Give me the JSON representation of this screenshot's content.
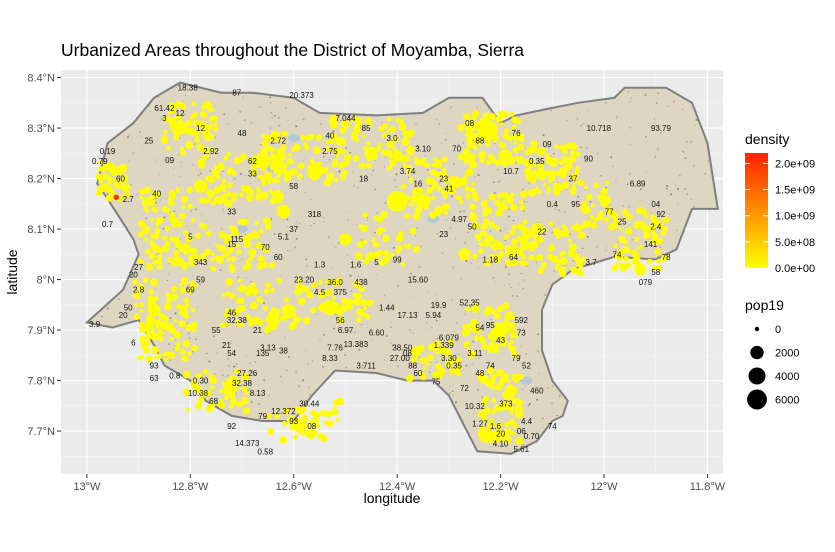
{
  "chart_data": {
    "type": "scatter",
    "title": "Urbanized Areas throughout the District of Moyamba, Sierra",
    "xlabel": "longitude",
    "ylabel": "latitude",
    "xlim": [
      -13.05,
      -11.77
    ],
    "ylim": [
      7.615,
      8.415
    ],
    "x_ticks": [
      {
        "value": -13.0,
        "label": "13°W"
      },
      {
        "value": -12.8,
        "label": "12.8°W"
      },
      {
        "value": -12.6,
        "label": "12.6°W"
      },
      {
        "value": -12.4,
        "label": "12.4°W"
      },
      {
        "value": -12.2,
        "label": "12.2°W"
      },
      {
        "value": -12.0,
        "label": "12°W"
      },
      {
        "value": -11.8,
        "label": "11.8°W"
      }
    ],
    "y_ticks": [
      {
        "value": 7.7,
        "label": "7.7°N"
      },
      {
        "value": 7.8,
        "label": "7.8°N"
      },
      {
        "value": 7.9,
        "label": "7.9°N"
      },
      {
        "value": 8.0,
        "label": "8°N"
      },
      {
        "value": 8.1,
        "label": "8.1°N"
      },
      {
        "value": 8.2,
        "label": "8.2°N"
      },
      {
        "value": 8.3,
        "label": "8.3°N"
      },
      {
        "value": 8.4,
        "label": "8.4°N"
      }
    ],
    "grid": true,
    "legend_position": "right",
    "colors": {
      "panel": "#ebebeb",
      "grid": "#ffffff",
      "land": "#ded6c0",
      "border": "#7f7f7f",
      "point": "#ffff00",
      "dense_point": "#ff2a00",
      "water": "#a9c6d9"
    },
    "legend_density": {
      "title": "density",
      "labels": [
        "2.0e+09",
        "1.5e+09",
        "1.0e+09",
        "5.0e+08",
        "0.0e+00"
      ],
      "values": [
        2000000000.0,
        1500000000.0,
        1000000000.0,
        500000000.0,
        0
      ],
      "color_low": "#ffff00",
      "color_high": "#ff2000"
    },
    "legend_pop": {
      "title": "pop19",
      "labels": [
        "0",
        "2000",
        "4000",
        "6000"
      ],
      "values": [
        0,
        2000,
        4000,
        6000
      ]
    },
    "district_outline": [
      [
        -13.0,
        7.915
      ],
      [
        -12.95,
        7.905
      ],
      [
        -12.9,
        7.92
      ],
      [
        -12.87,
        7.87
      ],
      [
        -12.85,
        7.83
      ],
      [
        -12.8,
        7.8
      ],
      [
        -12.77,
        7.76
      ],
      [
        -12.72,
        7.73
      ],
      [
        -12.66,
        7.72
      ],
      [
        -12.6,
        7.72
      ],
      [
        -12.565,
        7.77
      ],
      [
        -12.52,
        7.82
      ],
      [
        -12.44,
        7.815
      ],
      [
        -12.38,
        7.8
      ],
      [
        -12.33,
        7.8
      ],
      [
        -12.3,
        7.77
      ],
      [
        -12.275,
        7.72
      ],
      [
        -12.245,
        7.66
      ],
      [
        -12.18,
        7.655
      ],
      [
        -12.13,
        7.68
      ],
      [
        -12.1,
        7.72
      ],
      [
        -12.08,
        7.73
      ],
      [
        -12.07,
        7.76
      ],
      [
        -12.1,
        7.8
      ],
      [
        -12.12,
        7.86
      ],
      [
        -12.12,
        7.94
      ],
      [
        -12.1,
        7.99
      ],
      [
        -12.06,
        8.02
      ],
      [
        -11.98,
        8.045
      ],
      [
        -11.9,
        8.04
      ],
      [
        -11.86,
        8.06
      ],
      [
        -11.83,
        8.14
      ],
      [
        -11.78,
        8.14
      ],
      [
        -11.8,
        8.27
      ],
      [
        -11.83,
        8.35
      ],
      [
        -11.88,
        8.38
      ],
      [
        -11.96,
        8.38
      ],
      [
        -11.98,
        8.36
      ],
      [
        -12.05,
        8.35
      ],
      [
        -12.1,
        8.34
      ],
      [
        -12.17,
        8.325
      ],
      [
        -12.2,
        8.31
      ],
      [
        -12.235,
        8.36
      ],
      [
        -12.3,
        8.36
      ],
      [
        -12.35,
        8.33
      ],
      [
        -12.44,
        8.325
      ],
      [
        -12.55,
        8.33
      ],
      [
        -12.6,
        8.36
      ],
      [
        -12.68,
        8.37
      ],
      [
        -12.74,
        8.37
      ],
      [
        -12.82,
        8.39
      ],
      [
        -12.87,
        8.36
      ],
      [
        -12.91,
        8.31
      ],
      [
        -12.96,
        8.27
      ],
      [
        -12.98,
        8.19
      ],
      [
        -12.96,
        8.16
      ],
      [
        -12.91,
        8.08
      ],
      [
        -12.9,
        8.05
      ],
      [
        -12.93,
        7.98
      ],
      [
        -13.0,
        7.915
      ]
    ],
    "large_points": [
      {
        "x": -12.4,
        "y": 8.155,
        "pop19": 6500
      },
      {
        "x": -12.225,
        "y": 8.296,
        "pop19": 6000
      },
      {
        "x": -12.53,
        "y": 7.945,
        "pop19": 3000
      },
      {
        "x": -12.61,
        "y": 7.937,
        "pop19": 2500
      },
      {
        "x": -12.2,
        "y": 7.9,
        "pop19": 2500
      },
      {
        "x": -12.35,
        "y": 8.155,
        "pop19": 2500
      },
      {
        "x": -12.45,
        "y": 8.25,
        "pop19": 2000
      },
      {
        "x": -12.66,
        "y": 8.232,
        "pop19": 2000
      },
      {
        "x": -12.82,
        "y": 8.3,
        "pop19": 2000
      },
      {
        "x": -12.78,
        "y": 8.185,
        "pop19": 2000
      },
      {
        "x": -12.62,
        "y": 8.135,
        "pop19": 2000
      },
      {
        "x": -12.56,
        "y": 8.21,
        "pop19": 2000
      },
      {
        "x": -12.27,
        "y": 8.05,
        "pop19": 1500
      },
      {
        "x": -12.13,
        "y": 8.1,
        "pop19": 1500
      },
      {
        "x": -11.93,
        "y": 8.02,
        "pop19": 1500
      },
      {
        "x": -12.87,
        "y": 7.94,
        "pop19": 1500
      },
      {
        "x": -12.5,
        "y": 8.08,
        "pop19": 1500
      },
      {
        "x": -12.18,
        "y": 7.78,
        "pop19": 1500
      }
    ],
    "dense_points": [
      {
        "x": -12.943,
        "y": 8.163,
        "pop19": 0
      }
    ],
    "point_labels": [
      {
        "x": -12.805,
        "y": 8.38,
        "label": "18.38"
      },
      {
        "x": -12.71,
        "y": 8.37,
        "label": "87"
      },
      {
        "x": -12.585,
        "y": 8.365,
        "label": "20.373"
      },
      {
        "x": -12.5,
        "y": 8.32,
        "label": "7.044"
      },
      {
        "x": -12.85,
        "y": 8.34,
        "label": "61.42"
      },
      {
        "x": -12.7,
        "y": 8.29,
        "label": "48"
      },
      {
        "x": -12.63,
        "y": 8.275,
        "label": "2.72"
      },
      {
        "x": -12.53,
        "y": 8.255,
        "label": "2.75"
      },
      {
        "x": -12.96,
        "y": 8.255,
        "label": "0.19"
      },
      {
        "x": -12.88,
        "y": 8.275,
        "label": "25"
      },
      {
        "x": -12.84,
        "y": 8.237,
        "label": "09"
      },
      {
        "x": -12.975,
        "y": 8.235,
        "label": "0.79"
      },
      {
        "x": -12.935,
        "y": 8.2,
        "label": "60"
      },
      {
        "x": -12.865,
        "y": 8.17,
        "label": "40"
      },
      {
        "x": -12.92,
        "y": 8.16,
        "label": "2.7"
      },
      {
        "x": -12.96,
        "y": 8.11,
        "label": "0.7"
      },
      {
        "x": -12.72,
        "y": 8.135,
        "label": "33"
      },
      {
        "x": -12.6,
        "y": 8.185,
        "label": "58"
      },
      {
        "x": -12.465,
        "y": 8.2,
        "label": "18"
      },
      {
        "x": -12.38,
        "y": 8.215,
        "label": "3.74"
      },
      {
        "x": -12.31,
        "y": 8.2,
        "label": "23"
      },
      {
        "x": -12.56,
        "y": 8.13,
        "label": "318"
      },
      {
        "x": -12.72,
        "y": 8.07,
        "label": "15"
      },
      {
        "x": -12.655,
        "y": 8.065,
        "label": "70"
      },
      {
        "x": -12.78,
        "y": 8.035,
        "label": "343"
      },
      {
        "x": -12.63,
        "y": 8.045,
        "label": "60"
      },
      {
        "x": -12.55,
        "y": 8.03,
        "label": "1.3"
      },
      {
        "x": -12.48,
        "y": 8.03,
        "label": "1.6"
      },
      {
        "x": -12.44,
        "y": 8.035,
        "label": "5"
      },
      {
        "x": -12.4,
        "y": 8.04,
        "label": "99"
      },
      {
        "x": -12.36,
        "y": 8.0,
        "label": "15.60"
      },
      {
        "x": -12.22,
        "y": 8.04,
        "label": "1.18"
      },
      {
        "x": -12.175,
        "y": 8.045,
        "label": "64"
      },
      {
        "x": -12.12,
        "y": 8.095,
        "label": "22"
      },
      {
        "x": -12.1,
        "y": 8.15,
        "label": "0.4"
      },
      {
        "x": -12.055,
        "y": 8.15,
        "label": "95"
      },
      {
        "x": -11.99,
        "y": 8.135,
        "label": "77"
      },
      {
        "x": -11.965,
        "y": 8.115,
        "label": "25"
      },
      {
        "x": -11.935,
        "y": 8.19,
        "label": "6.89"
      },
      {
        "x": -11.9,
        "y": 8.15,
        "label": "04"
      },
      {
        "x": -11.89,
        "y": 8.13,
        "label": "92"
      },
      {
        "x": -11.9,
        "y": 8.105,
        "label": "2.4"
      },
      {
        "x": -11.91,
        "y": 8.07,
        "label": "141"
      },
      {
        "x": -11.88,
        "y": 8.045,
        "label": "78"
      },
      {
        "x": -11.9,
        "y": 8.015,
        "label": "58"
      },
      {
        "x": -11.92,
        "y": 7.995,
        "label": "079"
      },
      {
        "x": -11.975,
        "y": 8.05,
        "label": "74"
      },
      {
        "x": -12.025,
        "y": 8.035,
        "label": "3.7"
      },
      {
        "x": -12.06,
        "y": 8.2,
        "label": "37"
      },
      {
        "x": -12.03,
        "y": 8.24,
        "label": "90"
      },
      {
        "x": -12.01,
        "y": 8.3,
        "label": "10.718"
      },
      {
        "x": -11.89,
        "y": 8.3,
        "label": "93.79"
      },
      {
        "x": -12.13,
        "y": 8.235,
        "label": "0.35"
      },
      {
        "x": -12.18,
        "y": 8.215,
        "label": "10.7"
      },
      {
        "x": -12.11,
        "y": 8.268,
        "label": "09"
      },
      {
        "x": -12.17,
        "y": 8.29,
        "label": "76"
      },
      {
        "x": -12.26,
        "y": 8.31,
        "label": "08"
      },
      {
        "x": -12.24,
        "y": 8.275,
        "label": "88"
      },
      {
        "x": -12.285,
        "y": 8.26,
        "label": "70"
      },
      {
        "x": -12.35,
        "y": 8.26,
        "label": "3.10"
      },
      {
        "x": -12.41,
        "y": 8.28,
        "label": "3.0"
      },
      {
        "x": -12.46,
        "y": 8.3,
        "label": "85"
      },
      {
        "x": -12.53,
        "y": 8.285,
        "label": "40"
      },
      {
        "x": -12.36,
        "y": 8.19,
        "label": "16"
      },
      {
        "x": -12.3,
        "y": 8.18,
        "label": "41"
      },
      {
        "x": -12.28,
        "y": 8.12,
        "label": "4.97"
      },
      {
        "x": -12.255,
        "y": 8.105,
        "label": "50"
      },
      {
        "x": -12.31,
        "y": 8.09,
        "label": "23"
      },
      {
        "x": -12.58,
        "y": 8.0,
        "label": "23.20"
      },
      {
        "x": -12.52,
        "y": 7.995,
        "label": "36.0"
      },
      {
        "x": -12.47,
        "y": 7.995,
        "label": "438"
      },
      {
        "x": -12.55,
        "y": 7.975,
        "label": "4.5"
      },
      {
        "x": -12.51,
        "y": 7.975,
        "label": "375"
      },
      {
        "x": -12.42,
        "y": 7.945,
        "label": "1.44"
      },
      {
        "x": -12.32,
        "y": 7.95,
        "label": "19.9"
      },
      {
        "x": -12.38,
        "y": 7.93,
        "label": "17.13"
      },
      {
        "x": -12.33,
        "y": 7.93,
        "label": "5.94"
      },
      {
        "x": -12.26,
        "y": 7.955,
        "label": "52.35"
      },
      {
        "x": -12.51,
        "y": 7.92,
        "label": "56"
      },
      {
        "x": -12.5,
        "y": 7.9,
        "label": "6.97"
      },
      {
        "x": -12.44,
        "y": 7.895,
        "label": "6.60"
      },
      {
        "x": -12.48,
        "y": 7.872,
        "label": "13.383"
      },
      {
        "x": -12.39,
        "y": 7.865,
        "label": "38.50"
      },
      {
        "x": -12.38,
        "y": 7.855,
        "label": "08"
      },
      {
        "x": -12.395,
        "y": 7.845,
        "label": "27.00"
      },
      {
        "x": -12.37,
        "y": 7.83,
        "label": "88"
      },
      {
        "x": -12.36,
        "y": 7.815,
        "label": "60"
      },
      {
        "x": -12.325,
        "y": 7.798,
        "label": "75"
      },
      {
        "x": -12.3,
        "y": 7.885,
        "label": "6.079"
      },
      {
        "x": -12.31,
        "y": 7.87,
        "label": "1.339"
      },
      {
        "x": -12.3,
        "y": 7.845,
        "label": "3.30"
      },
      {
        "x": -12.29,
        "y": 7.83,
        "label": "0.35"
      },
      {
        "x": -12.24,
        "y": 7.905,
        "label": "54"
      },
      {
        "x": -12.22,
        "y": 7.91,
        "label": "95"
      },
      {
        "x": -12.16,
        "y": 7.92,
        "label": "592"
      },
      {
        "x": -12.16,
        "y": 7.895,
        "label": "73"
      },
      {
        "x": -12.2,
        "y": 7.88,
        "label": "43"
      },
      {
        "x": -12.25,
        "y": 7.855,
        "label": "3.11"
      },
      {
        "x": -12.22,
        "y": 7.83,
        "label": "74"
      },
      {
        "x": -12.17,
        "y": 7.845,
        "label": "79"
      },
      {
        "x": -12.15,
        "y": 7.83,
        "label": "52"
      },
      {
        "x": -12.13,
        "y": 7.78,
        "label": "460"
      },
      {
        "x": -12.24,
        "y": 7.815,
        "label": "48"
      },
      {
        "x": -12.27,
        "y": 7.785,
        "label": "72"
      },
      {
        "x": -12.25,
        "y": 7.75,
        "label": "10.32"
      },
      {
        "x": -12.19,
        "y": 7.755,
        "label": "373"
      },
      {
        "x": -12.24,
        "y": 7.715,
        "label": "1.27"
      },
      {
        "x": -12.21,
        "y": 7.71,
        "label": "1.6"
      },
      {
        "x": -12.15,
        "y": 7.72,
        "label": "4.4"
      },
      {
        "x": -12.1,
        "y": 7.71,
        "label": "74"
      },
      {
        "x": -12.16,
        "y": 7.7,
        "label": "06"
      },
      {
        "x": -12.14,
        "y": 7.69,
        "label": "0.70"
      },
      {
        "x": -12.2,
        "y": 7.695,
        "label": "20"
      },
      {
        "x": -12.2,
        "y": 7.675,
        "label": "4.10"
      },
      {
        "x": -12.16,
        "y": 7.665,
        "label": "5.61"
      },
      {
        "x": -12.46,
        "y": 7.83,
        "label": "3.711"
      },
      {
        "x": -12.53,
        "y": 7.845,
        "label": "8.33"
      },
      {
        "x": -12.52,
        "y": 7.865,
        "label": "7.76"
      },
      {
        "x": -12.65,
        "y": 7.865,
        "label": "3.13"
      },
      {
        "x": -12.62,
        "y": 7.86,
        "label": "38"
      },
      {
        "x": -12.66,
        "y": 7.855,
        "label": "135"
      },
      {
        "x": -12.69,
        "y": 7.815,
        "label": "27.26"
      },
      {
        "x": -12.7,
        "y": 7.795,
        "label": "32.38"
      },
      {
        "x": -12.67,
        "y": 7.775,
        "label": "8.13"
      },
      {
        "x": -12.57,
        "y": 7.755,
        "label": "30.44"
      },
      {
        "x": -12.62,
        "y": 7.74,
        "label": "12.372"
      },
      {
        "x": -12.66,
        "y": 7.73,
        "label": "79"
      },
      {
        "x": -12.6,
        "y": 7.72,
        "label": "93"
      },
      {
        "x": -12.565,
        "y": 7.71,
        "label": "08"
      },
      {
        "x": -12.72,
        "y": 7.71,
        "label": "92"
      },
      {
        "x": -12.69,
        "y": 7.676,
        "label": "14.373"
      },
      {
        "x": -12.655,
        "y": 7.66,
        "label": "0.58"
      },
      {
        "x": -12.785,
        "y": 7.775,
        "label": "10.38"
      },
      {
        "x": -12.755,
        "y": 7.76,
        "label": "68"
      },
      {
        "x": -12.78,
        "y": 7.8,
        "label": "0.30"
      },
      {
        "x": -12.83,
        "y": 7.81,
        "label": "0.8"
      },
      {
        "x": -12.87,
        "y": 7.83,
        "label": "93"
      },
      {
        "x": -12.87,
        "y": 7.805,
        "label": "63"
      },
      {
        "x": -12.91,
        "y": 7.875,
        "label": "6"
      },
      {
        "x": -12.985,
        "y": 7.912,
        "label": "3.9"
      },
      {
        "x": -12.93,
        "y": 7.93,
        "label": "20"
      },
      {
        "x": -12.92,
        "y": 7.945,
        "label": "50"
      },
      {
        "x": -12.9,
        "y": 7.98,
        "label": "2.8"
      },
      {
        "x": -12.91,
        "y": 8.01,
        "label": "20"
      },
      {
        "x": -12.9,
        "y": 8.025,
        "label": "27"
      },
      {
        "x": -12.78,
        "y": 8.0,
        "label": "59"
      },
      {
        "x": -12.8,
        "y": 7.98,
        "label": "69"
      },
      {
        "x": -12.72,
        "y": 7.935,
        "label": "46"
      },
      {
        "x": -12.71,
        "y": 7.92,
        "label": "32.38"
      },
      {
        "x": -12.75,
        "y": 7.9,
        "label": "55"
      },
      {
        "x": -12.67,
        "y": 7.9,
        "label": "21"
      },
      {
        "x": -12.73,
        "y": 7.87,
        "label": "21"
      },
      {
        "x": -12.72,
        "y": 7.855,
        "label": "54"
      },
      {
        "x": -12.71,
        "y": 8.08,
        "label": "115"
      },
      {
        "x": -12.62,
        "y": 8.085,
        "label": "5.1"
      },
      {
        "x": -12.8,
        "y": 8.085,
        "label": "5"
      },
      {
        "x": -12.6,
        "y": 8.1,
        "label": "37"
      },
      {
        "x": -12.68,
        "y": 8.235,
        "label": "62"
      },
      {
        "x": -12.68,
        "y": 8.21,
        "label": "33"
      },
      {
        "x": -12.76,
        "y": 8.255,
        "label": "2.92"
      },
      {
        "x": -12.78,
        "y": 8.3,
        "label": "12"
      },
      {
        "x": -12.85,
        "y": 8.32,
        "label": "3"
      },
      {
        "x": -12.82,
        "y": 8.33,
        "label": "12"
      }
    ]
  }
}
